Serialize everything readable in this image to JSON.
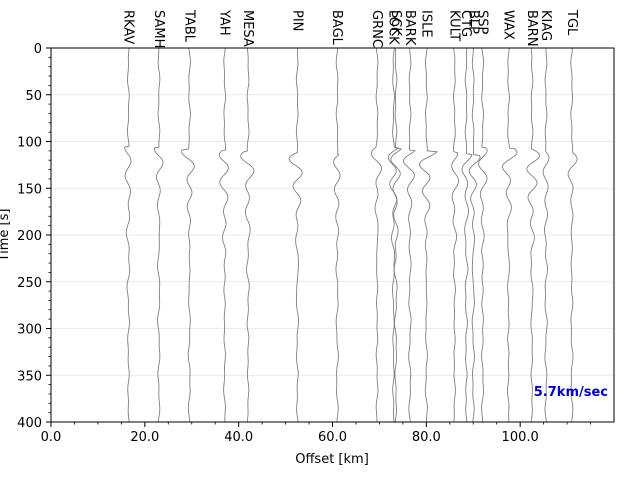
{
  "chart_data": {
    "type": "line",
    "xlabel": "Offset [km]",
    "ylabel": "Time [s]",
    "xlim": [
      0,
      120
    ],
    "ylim": [
      400,
      0
    ],
    "y_inverted": true,
    "xticks": [
      "0.0",
      "20.0",
      "40.0",
      "60.0",
      "80.0",
      "100.0"
    ],
    "yticks": [
      "0",
      "50",
      "100",
      "150",
      "200",
      "250",
      "300",
      "350",
      "400"
    ],
    "grid": "horizontal",
    "annotation": {
      "text": "5.7km/sec",
      "color": "#0000cc"
    },
    "trace_color": "#808080",
    "arrival_time_s": 110,
    "stations": [
      {
        "name": "RKAV",
        "offset_km": 16.5
      },
      {
        "name": "SAMH",
        "offset_km": 23.0
      },
      {
        "name": "TABL",
        "offset_km": 29.5
      },
      {
        "name": "YAH",
        "offset_km": 37.0
      },
      {
        "name": "MESA",
        "offset_km": 42.0
      },
      {
        "name": "PIN",
        "offset_km": 52.5
      },
      {
        "name": "BAGL",
        "offset_km": 61.0
      },
      {
        "name": "GRNC",
        "offset_km": 69.5
      },
      {
        "name": "LOCK",
        "offset_km": 73.0
      },
      {
        "name": "SCK",
        "offset_km": 73.5
      },
      {
        "name": "BARK",
        "offset_km": 76.5
      },
      {
        "name": "ISLE",
        "offset_km": 80.0
      },
      {
        "name": "KULT",
        "offset_km": 86.0
      },
      {
        "name": "CTG",
        "offset_km": 88.5
      },
      {
        "name": "BLP",
        "offset_km": 90.0
      },
      {
        "name": "SSP",
        "offset_km": 92.0
      },
      {
        "name": "WAX",
        "offset_km": 97.5
      },
      {
        "name": "BARN",
        "offset_km": 102.5
      },
      {
        "name": "KIAG",
        "offset_km": 105.5
      },
      {
        "name": "TGL",
        "offset_km": 111.0
      }
    ]
  }
}
